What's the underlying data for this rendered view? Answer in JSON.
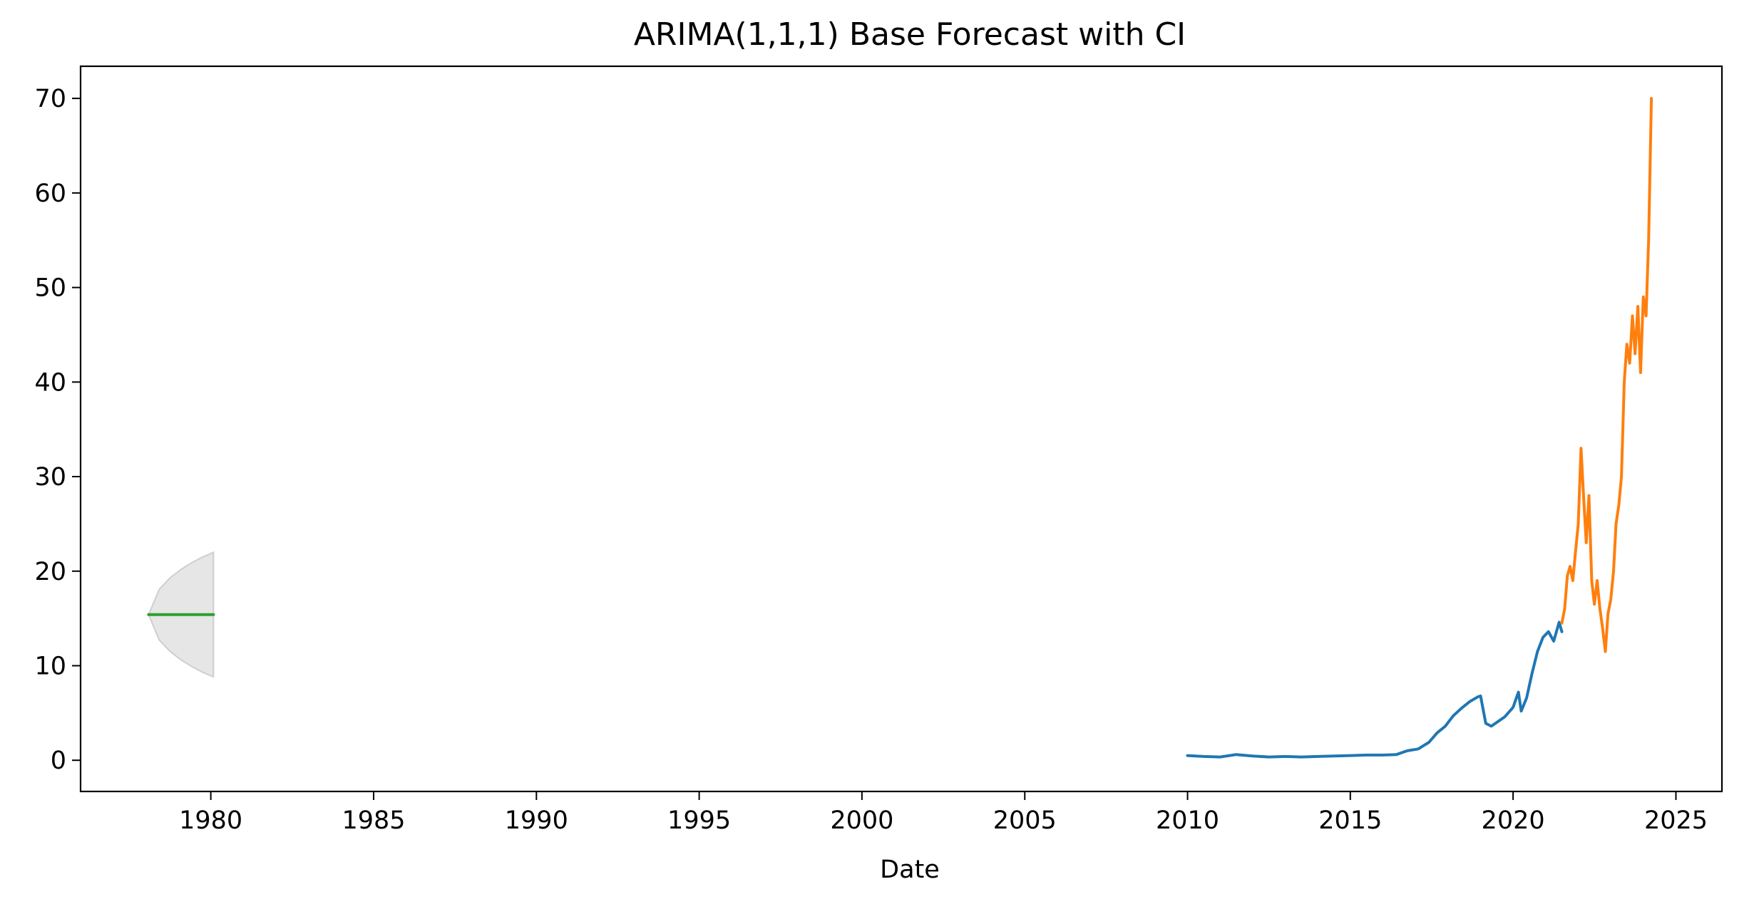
{
  "chart_data": {
    "type": "line",
    "title": "ARIMA(1,1,1) Base Forecast with CI",
    "xlabel": "Date",
    "ylabel": "",
    "xlim": [
      "1976-01-01",
      "2026-06-01"
    ],
    "ylim": [
      -3.3,
      73.4
    ],
    "x_ticks": [
      "1980",
      "1985",
      "1990",
      "1995",
      "2000",
      "2005",
      "2010",
      "2015",
      "2020",
      "2025"
    ],
    "y_ticks": [
      0,
      10,
      20,
      30,
      40,
      50,
      60,
      70
    ],
    "grid": false,
    "legend": "none",
    "series": [
      {
        "color": "#1f77b4",
        "x": [
          "2010-01-01",
          "2010-07-01",
          "2011-01-01",
          "2011-07-01",
          "2012-01-01",
          "2012-07-01",
          "2013-01-01",
          "2013-07-01",
          "2014-01-01",
          "2014-07-01",
          "2015-01-01",
          "2015-07-01",
          "2016-01-01",
          "2016-06-01",
          "2016-10-01",
          "2017-02-01",
          "2017-06-01",
          "2017-09-01",
          "2017-12-01",
          "2018-03-01",
          "2018-06-01",
          "2018-09-01",
          "2018-12-01",
          "2019-01-01",
          "2019-03-01",
          "2019-05-01",
          "2019-07-01",
          "2019-10-01",
          "2020-01-01",
          "2020-03-01",
          "2020-04-01",
          "2020-06-01",
          "2020-08-01",
          "2020-10-01",
          "2020-12-01",
          "2021-02-01",
          "2021-04-01",
          "2021-06-01",
          "2021-07-01"
        ],
        "y": [
          0.5,
          0.4,
          0.35,
          0.6,
          0.45,
          0.35,
          0.4,
          0.35,
          0.4,
          0.45,
          0.5,
          0.55,
          0.55,
          0.6,
          1.0,
          1.2,
          1.9,
          2.9,
          3.6,
          4.7,
          5.5,
          6.2,
          6.7,
          6.8,
          3.9,
          3.6,
          4.0,
          4.6,
          5.6,
          7.2,
          5.2,
          6.6,
          9.2,
          11.5,
          13.0,
          13.6,
          12.6,
          14.6,
          13.6
        ],
        "line_width": 4
      },
      {
        "color": "#ff7f0e",
        "x": [
          "2021-07-01",
          "2021-08-01",
          "2021-09-01",
          "2021-10-01",
          "2021-11-01",
          "2021-12-01",
          "2022-01-01",
          "2022-02-01",
          "2022-03-01",
          "2022-04-01",
          "2022-05-01",
          "2022-06-01",
          "2022-07-01",
          "2022-08-01",
          "2022-09-01",
          "2022-10-01",
          "2022-11-01",
          "2022-12-01",
          "2023-01-01",
          "2023-02-01",
          "2023-03-01",
          "2023-04-01",
          "2023-05-01",
          "2023-06-01",
          "2023-07-01",
          "2023-08-01",
          "2023-09-01",
          "2023-10-01",
          "2023-11-01",
          "2023-12-01",
          "2024-01-01",
          "2024-02-01",
          "2024-03-01",
          "2024-04-01"
        ],
        "y": [
          14.5,
          16.0,
          19.5,
          20.5,
          19.0,
          22.0,
          25.0,
          33.0,
          28.0,
          23.0,
          28.0,
          19.0,
          16.5,
          19.0,
          16.0,
          14.0,
          11.5,
          15.5,
          17.0,
          20.0,
          25.0,
          27.0,
          30.0,
          40.0,
          44.0,
          42.0,
          47.0,
          43.0,
          48.0,
          41.0,
          49.0,
          47.0,
          55.0,
          70.0
        ],
        "line_width": 4
      },
      {
        "color": "#2ca02c",
        "x": [
          "1978-02-01",
          "1980-02-01"
        ],
        "y": [
          15.4,
          15.4
        ],
        "line_width": 4
      }
    ],
    "confidence_band": {
      "color": "#808080",
      "opacity": 0.2,
      "x": [
        "1978-02-01",
        "1978-06-01",
        "1978-10-01",
        "1979-02-01",
        "1979-06-01",
        "1979-10-01",
        "1980-02-01"
      ],
      "lower": [
        15.4,
        12.7,
        11.5,
        10.6,
        9.9,
        9.3,
        8.8
      ],
      "upper": [
        15.4,
        18.1,
        19.3,
        20.2,
        20.9,
        21.5,
        22.0
      ]
    }
  }
}
